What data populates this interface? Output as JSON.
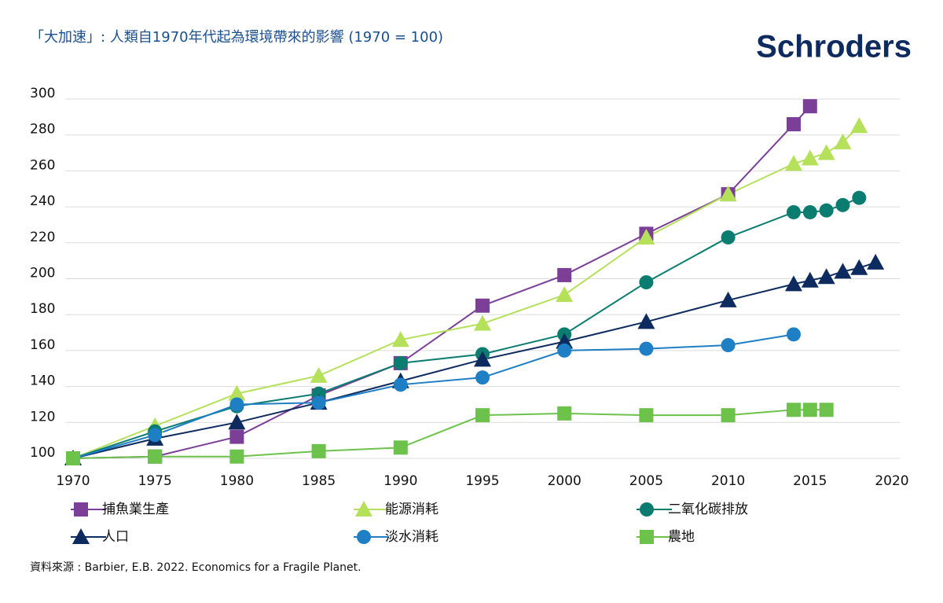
{
  "chart_data": {
    "type": "line",
    "title": "「大加速」: 人類自1970年代起為環境帶來的影響 (1970 = 100)",
    "brand": "Schroders",
    "source": "資料來源 : Barbier, E.B. 2022. Economics for a Fragile Planet.",
    "xlim": [
      1970,
      2020
    ],
    "xticks": [
      1970,
      1975,
      1980,
      1985,
      1990,
      1995,
      2000,
      2005,
      2010,
      2015,
      2020
    ],
    "ylim": [
      100,
      300
    ],
    "yticks": [
      100,
      120,
      140,
      160,
      180,
      200,
      220,
      240,
      260,
      280,
      300
    ],
    "grid": true,
    "series": [
      {
        "name": "捕魚業生產",
        "color": "#7b3f98",
        "marker": "square",
        "x": [
          1970,
          1975,
          1980,
          1985,
          1990,
          1995,
          2000,
          2005,
          2010,
          2014,
          2015
        ],
        "values": [
          100,
          101,
          112,
          135,
          153,
          185,
          202,
          225,
          247,
          286,
          296
        ]
      },
      {
        "name": "能源消耗",
        "color": "#b5e05a",
        "marker": "triangle",
        "x": [
          1970,
          1975,
          1980,
          1985,
          1990,
          1995,
          2000,
          2005,
          2010,
          2014,
          2015,
          2016,
          2017,
          2018
        ],
        "values": [
          100,
          118,
          136,
          146,
          166,
          175,
          191,
          223,
          247,
          264,
          267,
          270,
          276,
          285
        ]
      },
      {
        "name": "二氧化碳排放",
        "color": "#0b7d70",
        "marker": "circle",
        "x": [
          1970,
          1975,
          1980,
          1985,
          1990,
          1995,
          2000,
          2005,
          2010,
          2014,
          2015,
          2016,
          2017,
          2018
        ],
        "values": [
          100,
          115,
          129,
          136,
          153,
          158,
          169,
          198,
          223,
          237,
          237,
          238,
          241,
          245
        ]
      },
      {
        "name": "人口",
        "color": "#0d2b5e",
        "marker": "triangle",
        "x": [
          1970,
          1975,
          1980,
          1985,
          1990,
          1995,
          2000,
          2005,
          2010,
          2014,
          2015,
          2016,
          2017,
          2018,
          2019
        ],
        "values": [
          100,
          111,
          120,
          131,
          143,
          155,
          165,
          176,
          188,
          197,
          199,
          201,
          204,
          206,
          209
        ]
      },
      {
        "name": "淡水消耗",
        "color": "#1f7fc4",
        "marker": "circle",
        "x": [
          1970,
          1975,
          1980,
          1985,
          1990,
          1995,
          2000,
          2005,
          2010,
          2014
        ],
        "values": [
          100,
          113,
          130,
          131,
          141,
          145,
          160,
          161,
          163,
          169
        ]
      },
      {
        "name": "農地",
        "color": "#6cc24a",
        "marker": "square",
        "x": [
          1970,
          1975,
          1980,
          1985,
          1990,
          1995,
          2000,
          2005,
          2010,
          2014,
          2015,
          2016
        ],
        "values": [
          100,
          101,
          101,
          104,
          106,
          124,
          125,
          124,
          124,
          127,
          127,
          127
        ]
      }
    ]
  }
}
